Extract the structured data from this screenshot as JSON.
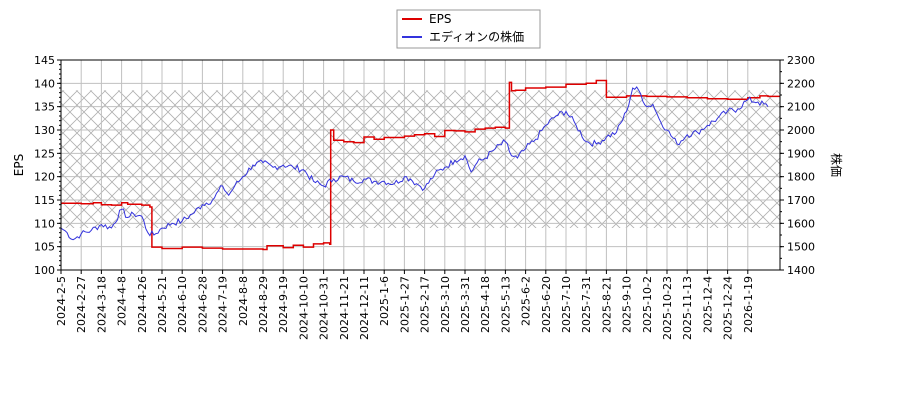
{
  "chart_data": {
    "type": "line",
    "title": "",
    "legend": {
      "position": "top-center",
      "entries": [
        {
          "label": "EPS",
          "color": "#dd0000"
        },
        {
          "label": "エディオンの株価",
          "color": "#3333dd"
        }
      ]
    },
    "xlabel": "",
    "ylabel_left": "EPS",
    "ylabel_right": "株価",
    "ylim_left": [
      100,
      145
    ],
    "ylim_right": [
      1400,
      2300
    ],
    "yticks_left": [
      100,
      105,
      110,
      115,
      120,
      125,
      130,
      135,
      140,
      145
    ],
    "yticks_right": [
      1400,
      1500,
      1600,
      1700,
      1800,
      1900,
      2000,
      2100,
      2200,
      2300
    ],
    "grid": true,
    "shaded_band_right": [
      1580,
      2170
    ],
    "x_tick_labels": [
      "2024-2-5",
      "2024-2-27",
      "2024-3-18",
      "2024-4-8",
      "2024-4-26",
      "2024-5-21",
      "2024-6-10",
      "2024-6-28",
      "2024-7-19",
      "2024-8-8",
      "2024-8-29",
      "2024-9-19",
      "2024-10-10",
      "2024-10-31",
      "2024-11-21",
      "2024-12-11",
      "2025-1-6",
      "2025-1-27",
      "2025-2-17",
      "2025-3-10",
      "2025-3-31",
      "2025-4-18",
      "2025-5-13",
      "2025-6-2",
      "2025-6-20",
      "2025-7-10",
      "2025-7-31",
      "2025-8-21",
      "2025-9-10",
      "2025-10-2",
      "2025-10-23",
      "2025-11-13",
      "2025-12-4",
      "2025-12-24",
      "2026-1-19"
    ],
    "series": [
      {
        "name": "EPS",
        "axis": "left",
        "color": "#dd0000",
        "x_index": [
          0,
          1,
          1.6,
          2,
          2.5,
          3,
          3.3,
          4,
          4.4,
          4.5,
          5,
          6,
          7,
          8,
          9,
          10,
          10.2,
          11,
          11.5,
          12,
          12.5,
          13,
          13.3,
          13.35,
          13.5,
          14,
          14.5,
          15,
          15.5,
          16,
          17,
          17.5,
          18,
          18.5,
          19,
          19.5,
          20,
          20.5,
          21,
          21.5,
          22,
          22.2,
          22.3,
          22.5,
          23,
          24,
          25,
          26,
          26.5,
          27,
          28,
          29,
          30,
          31,
          32,
          33,
          34,
          34.6,
          35
        ],
        "values": [
          114.3,
          114.2,
          114.4,
          114.0,
          113.9,
          114.4,
          114.1,
          113.9,
          113.5,
          104.9,
          104.6,
          104.9,
          104.7,
          104.5,
          104.5,
          104.4,
          105.2,
          104.8,
          105.3,
          104.9,
          105.6,
          105.8,
          105.5,
          130.0,
          127.8,
          127.5,
          127.3,
          128.5,
          128.0,
          128.4,
          128.7,
          129.0,
          129.2,
          128.6,
          129.9,
          129.8,
          129.6,
          130.2,
          130.4,
          130.6,
          130.4,
          140.2,
          138.4,
          138.5,
          139.0,
          139.2,
          139.8,
          140.0,
          140.6,
          137.0,
          137.3,
          137.2,
          137.1,
          136.9,
          136.7,
          136.6,
          136.9,
          137.3,
          137.2
        ]
      },
      {
        "name": "エディオンの株価",
        "axis": "right",
        "color": "#3333dd",
        "x_index": [
          0,
          0.3,
          0.6,
          1,
          1.5,
          2,
          2.5,
          3,
          3.3,
          3.6,
          4,
          4.3,
          4.6,
          5,
          5.5,
          6,
          6.5,
          7,
          7.5,
          8,
          8.3,
          8.6,
          9,
          9.5,
          10,
          10.5,
          11,
          11.5,
          12,
          12.5,
          13,
          13.5,
          14,
          14.5,
          15,
          15.5,
          16,
          16.5,
          17,
          17.3,
          17.6,
          18,
          18.5,
          19,
          19.5,
          20,
          20.3,
          20.6,
          21,
          21.5,
          22,
          22.3,
          22.6,
          23,
          23.5,
          24,
          24.5,
          25,
          25.5,
          26,
          26.5,
          27,
          27.5,
          28,
          28.3,
          28.6,
          29,
          29.3,
          29.6,
          30,
          30.5,
          31,
          31.5,
          32,
          32.5,
          33,
          33.5,
          34,
          34.5,
          35
        ],
        "values": [
          1580,
          1560,
          1530,
          1555,
          1570,
          1595,
          1580,
          1660,
          1625,
          1640,
          1630,
          1560,
          1550,
          1580,
          1600,
          1610,
          1640,
          1680,
          1700,
          1760,
          1720,
          1760,
          1800,
          1850,
          1860,
          1840,
          1850,
          1840,
          1830,
          1780,
          1760,
          1790,
          1800,
          1780,
          1790,
          1780,
          1780,
          1770,
          1800,
          1790,
          1770,
          1750,
          1810,
          1840,
          1870,
          1890,
          1820,
          1860,
          1880,
          1920,
          1950,
          1890,
          1880,
          1920,
          1960,
          2020,
          2060,
          2080,
          2020,
          1950,
          1940,
          1970,
          1990,
          2080,
          2180,
          2170,
          2100,
          2110,
          2050,
          2000,
          1940,
          1980,
          1990,
          2020,
          2050,
          2080,
          2090,
          2130,
          2120,
          2100
        ]
      }
    ]
  }
}
